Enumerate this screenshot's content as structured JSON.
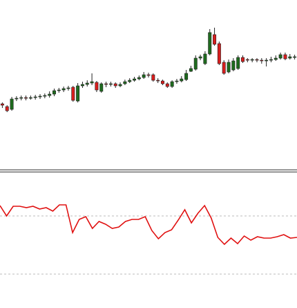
{
  "chart_data": [
    {
      "type": "candlestick",
      "up_color": "#1e6b1e",
      "down_color": "#d81e1e",
      "ylim": [
        0,
        245
      ],
      "open": [
        95,
        91,
        87,
        102,
        103,
        104,
        103,
        104,
        105,
        106,
        107,
        109,
        114,
        115,
        117,
        119,
        99,
        121,
        123,
        125,
        126,
        113,
        124,
        123,
        124,
        121,
        124,
        127,
        129,
        131,
        133,
        137,
        137,
        129,
        128,
        124,
        120,
        127,
        128,
        130,
        142,
        145,
        161,
        153,
        167,
        195,
        182,
        155,
        141,
        144,
        146,
        162,
        159,
        158,
        159,
        158,
        157,
        158,
        159,
        161,
        166,
        161,
        163
      ],
      "high": [
        97,
        93,
        105,
        106,
        107,
        107,
        107,
        108,
        109,
        110,
        113,
        117,
        118,
        120,
        121,
        121,
        125,
        127,
        129,
        139,
        128,
        126,
        127,
        127,
        126,
        126,
        130,
        132,
        134,
        136,
        141,
        140,
        139,
        132,
        130,
        126,
        129,
        131,
        135,
        144,
        150,
        165,
        166,
        171,
        203,
        205,
        185,
        158,
        159,
        161,
        165,
        165,
        161,
        161,
        161,
        161,
        161,
        163,
        165,
        169,
        169,
        167,
        166
      ],
      "low": [
        89,
        83,
        85,
        99,
        100,
        100,
        101,
        101,
        102,
        103,
        104,
        106,
        111,
        112,
        114,
        98,
        97,
        118,
        120,
        122,
        112,
        111,
        119,
        120,
        118,
        119,
        122,
        125,
        127,
        129,
        131,
        133,
        127,
        125,
        122,
        118,
        118,
        124,
        126,
        128,
        141,
        143,
        158,
        151,
        165,
        179,
        151,
        137,
        139,
        142,
        144,
        154,
        155,
        155,
        155,
        153,
        149,
        155,
        157,
        159,
        158,
        159,
        159
      ],
      "close": [
        93,
        85,
        102,
        103,
        104,
        103,
        104,
        105,
        106,
        107,
        109,
        114,
        115,
        117,
        118,
        100,
        121,
        123,
        125,
        127,
        115,
        124,
        123,
        124,
        121,
        123,
        127,
        129,
        131,
        133,
        137,
        136,
        129,
        128,
        124,
        120,
        127,
        128,
        131,
        139,
        146,
        161,
        163,
        167,
        198,
        181,
        153,
        139,
        155,
        157,
        162,
        156,
        158,
        159,
        158,
        157,
        158,
        159,
        161,
        166,
        160,
        163,
        163
      ]
    },
    {
      "type": "line",
      "color": "#e01010",
      "ylim": [
        0,
        195
      ],
      "yticks": [
        49,
        133
      ],
      "grid": true,
      "values": [
        148,
        133,
        147,
        147,
        145,
        147,
        143,
        145,
        140,
        149,
        149,
        109,
        128,
        132,
        115,
        125,
        121,
        115,
        117,
        125,
        128,
        128,
        132,
        112,
        100,
        109,
        113,
        127,
        142,
        123,
        137,
        148,
        130,
        102,
        92,
        101,
        93,
        104,
        98,
        103,
        101,
        101,
        103,
        106,
        101,
        102
      ]
    }
  ]
}
